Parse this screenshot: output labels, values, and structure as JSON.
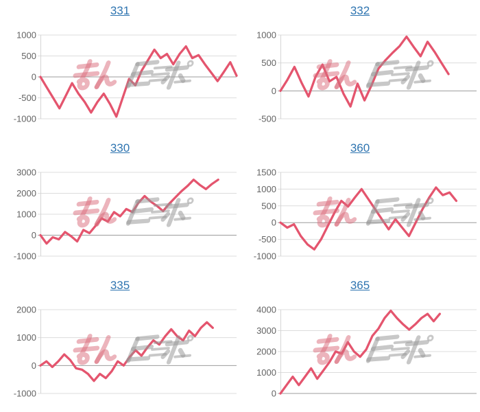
{
  "page": {
    "background": "#ffffff"
  },
  "style": {
    "line_color": "#e4556e",
    "grid_color": "#dcdcdc",
    "zero_line_color": "#9c9c9c",
    "axis_line_color": "#d4d4d4",
    "tick_label_color": "#636363",
    "title_link_color": "#2e74b0",
    "watermark_pink": "rgba(217,106,122,0.5)",
    "watermark_gray": "rgba(150,150,150,0.52)"
  },
  "watermark": {
    "text": "みんレポ",
    "pink_part": "みん",
    "gray_part": "レポ"
  },
  "chart_data": [
    {
      "title": "331",
      "type": "line",
      "legend": "none",
      "grid": "on",
      "yticks": [
        1000,
        500,
        0,
        -500,
        -1000
      ],
      "ylim": [
        -1000,
        1000
      ],
      "total_slots": 32,
      "values": [
        0,
        -250,
        -500,
        -750,
        -450,
        -150,
        -400,
        -600,
        -850,
        -600,
        -400,
        -650,
        -950,
        -500,
        -50,
        -200,
        150,
        400,
        650,
        450,
        550,
        300,
        550,
        730,
        450,
        520,
        300,
        100,
        -100,
        120,
        350,
        30
      ]
    },
    {
      "title": "332",
      "type": "line",
      "legend": "none",
      "grid": "on",
      "yticks": [
        1000,
        500,
        0,
        -500
      ],
      "ylim": [
        -500,
        1000
      ],
      "total_slots": 29,
      "values": [
        0,
        200,
        430,
        150,
        -100,
        250,
        470,
        170,
        250,
        -50,
        -280,
        130,
        -170,
        100,
        400,
        550,
        680,
        800,
        970,
        790,
        620,
        880,
        700,
        500,
        300
      ]
    },
    {
      "title": "330",
      "type": "line",
      "legend": "none",
      "grid": "on",
      "yticks": [
        3000,
        2000,
        1000,
        0,
        -1000
      ],
      "ylim": [
        -1000,
        3000
      ],
      "total_slots": 33,
      "values": [
        0,
        -400,
        -100,
        -200,
        150,
        -50,
        -300,
        250,
        100,
        450,
        800,
        650,
        1100,
        900,
        1250,
        1100,
        1550,
        1870,
        1600,
        1400,
        1150,
        1500,
        1800,
        2100,
        2350,
        2650,
        2400,
        2200,
        2450,
        2650
      ]
    },
    {
      "title": "360",
      "type": "line",
      "legend": "none",
      "grid": "on",
      "yticks": [
        1500,
        1000,
        500,
        0,
        -500,
        -1000
      ],
      "ylim": [
        -1000,
        1500
      ],
      "total_slots": 30,
      "values": [
        0,
        -150,
        -50,
        -400,
        -650,
        -800,
        -500,
        -100,
        300,
        650,
        480,
        750,
        1000,
        700,
        400,
        100,
        -200,
        100,
        -150,
        -400,
        0,
        400,
        750,
        1050,
        820,
        900,
        650
      ]
    },
    {
      "title": "335",
      "type": "line",
      "legend": "none",
      "grid": "on",
      "yticks": [
        2000,
        1000,
        0,
        -1000
      ],
      "ylim": [
        -1000,
        2000
      ],
      "total_slots": 34,
      "values": [
        0,
        150,
        -50,
        150,
        400,
        200,
        -100,
        -150,
        -300,
        -550,
        -300,
        -450,
        -200,
        150,
        0,
        300,
        550,
        350,
        650,
        900,
        750,
        1050,
        1300,
        1050,
        900,
        1250,
        1050,
        1350,
        1550,
        1350
      ]
    },
    {
      "title": "365",
      "type": "line",
      "legend": "none",
      "grid": "on",
      "yticks": [
        4000,
        3000,
        2000,
        1000,
        0
      ],
      "ylim": [
        0,
        4000
      ],
      "total_slots": 33,
      "values": [
        0,
        400,
        800,
        400,
        800,
        1200,
        700,
        1100,
        1500,
        2000,
        1900,
        2450,
        2000,
        1750,
        2100,
        2750,
        3100,
        3600,
        3950,
        3600,
        3300,
        3050,
        3300,
        3600,
        3800,
        3450,
        3800
      ]
    }
  ]
}
